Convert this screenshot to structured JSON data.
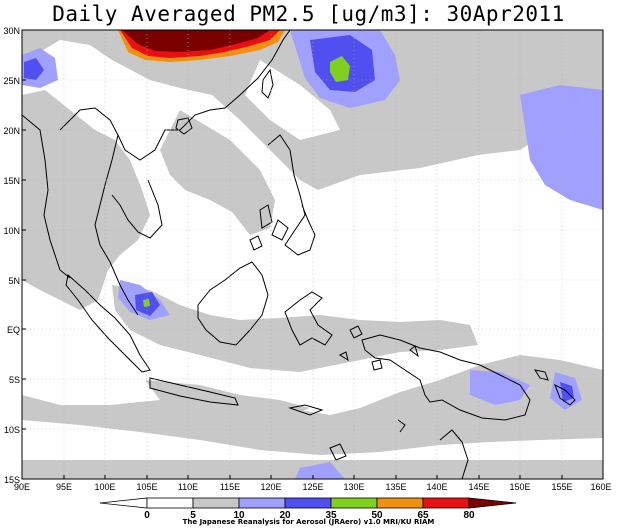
{
  "title": "Daily Averaged PM2.5 [ug/m3]: 30Apr2011",
  "credit": "The Japanese Reanalysis for Aerosol (JRAero) v1.0 MRI/KU RIAM",
  "map": {
    "lon_range": [
      90,
      160
    ],
    "lat_range": [
      -15,
      30
    ],
    "x_ticks": [
      "90E",
      "95E",
      "100E",
      "105E",
      "110E",
      "115E",
      "120E",
      "125E",
      "130E",
      "135E",
      "140E",
      "145E",
      "150E",
      "155E",
      "160E"
    ],
    "y_ticks": [
      "30N",
      "25N",
      "20N",
      "15N",
      "10N",
      "5N",
      "EQ",
      "5S",
      "10S",
      "15S"
    ]
  },
  "colorbar": {
    "levels": [
      "0",
      "5",
      "10",
      "20",
      "35",
      "50",
      "65",
      "80"
    ],
    "colors": [
      "#ffffff",
      "#ffffff",
      "#c8c8c8",
      "#a0a0ff",
      "#5050f0",
      "#80d020",
      "#f09010",
      "#e81010",
      "#7a0000"
    ]
  }
}
